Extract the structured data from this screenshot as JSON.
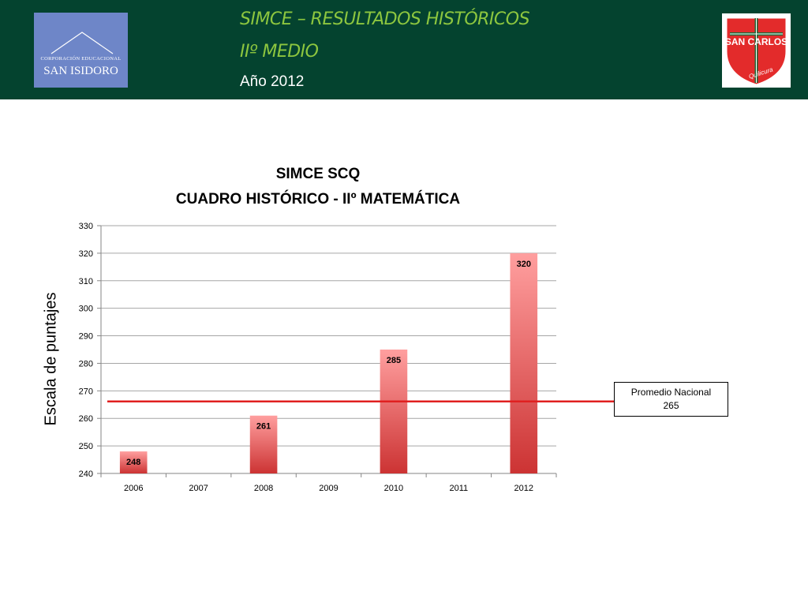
{
  "header": {
    "title_line1": "SIMCE – RESULTADOS HISTÓRICOS",
    "title_line2": "IIº MEDIO",
    "year_label": "Año 2012",
    "left_logo": {
      "org_text": "CORPORACIÓN EDUCACIONAL",
      "name": "SAN ISIDORO",
      "color": "#6e86c8"
    },
    "right_logo": {
      "text_main": "SAN CARLOS",
      "text_sub": "Quilicura",
      "color": "#e32b2b"
    },
    "background_color": "#04432f",
    "title_color": "#8dc63f"
  },
  "chart_data": {
    "type": "bar",
    "title": "SIMCE SCQ",
    "subtitle": "CUADRO HISTÓRICO - IIº MATEMÁTICA",
    "xlabel": "",
    "ylabel": "Escala de puntajes",
    "categories": [
      "2006",
      "2007",
      "2008",
      "2009",
      "2010",
      "2011",
      "2012"
    ],
    "values": [
      248,
      null,
      261,
      null,
      285,
      null,
      320
    ],
    "data_labels": [
      "248",
      "",
      "261",
      "",
      "285",
      "",
      "320"
    ],
    "ylim": [
      240,
      330
    ],
    "yticks": [
      240,
      250,
      260,
      270,
      280,
      290,
      300,
      310,
      320,
      330
    ],
    "grid": true,
    "bar_color_top": "#ff9f9f",
    "bar_color_bottom": "#cc3333",
    "reference_line": {
      "value": 265,
      "label": "Promedio Nacional",
      "value_label": "265",
      "color": "#e02020"
    }
  }
}
